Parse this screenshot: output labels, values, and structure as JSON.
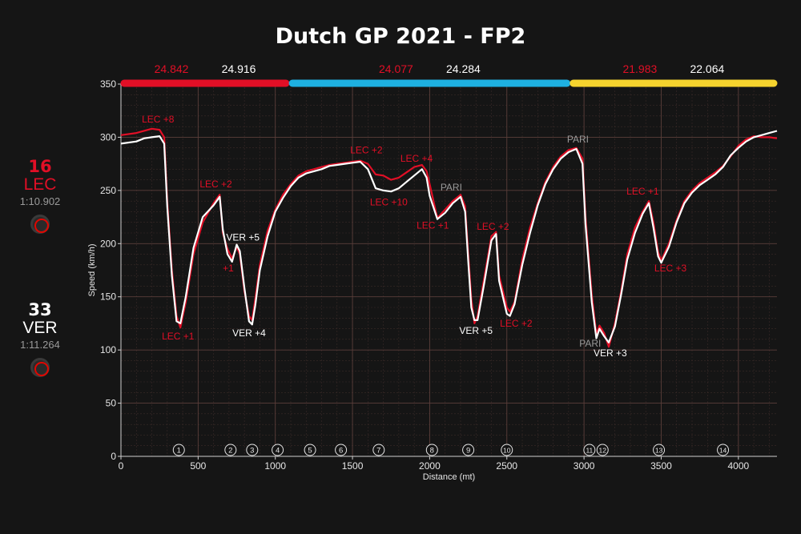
{
  "title": "Dutch GP 2021 - FP2",
  "colors": {
    "lec": "#e10f26",
    "ver": "#ffffff",
    "sector1": "#e10f26",
    "sector2": "#1eb0e1",
    "sector3": "#f5d32e",
    "grid": "#5a3e3a",
    "background": "#151515"
  },
  "drivers": [
    {
      "number": "16",
      "code": "LEC",
      "laptime": "1:10.902",
      "color": "#e10f26",
      "tyre_icon": "soft-tyre-icon"
    },
    {
      "number": "33",
      "code": "VER",
      "laptime": "1:11.264",
      "color": "#ffffff",
      "tyre_icon": "soft-tyre-icon"
    }
  ],
  "sectors": [
    {
      "start": 0,
      "end": 1090,
      "color": "#e10f26",
      "lec_time": "24.842",
      "ver_time": "24.916"
    },
    {
      "start": 1090,
      "end": 2910,
      "color": "#1eb0e1",
      "lec_time": "24.077",
      "ver_time": "24.284"
    },
    {
      "start": 2910,
      "end": 4250,
      "color": "#f5d32e",
      "lec_time": "21.983",
      "ver_time": "22.064"
    }
  ],
  "chart_data": {
    "type": "line",
    "title": "Dutch GP 2021 - FP2",
    "xlabel": "Distance (mt)",
    "ylabel": "Speed (km/h)",
    "xlim": [
      0,
      4250
    ],
    "ylim": [
      0,
      350
    ],
    "xticks": [
      0,
      500,
      1000,
      1500,
      2000,
      2500,
      3000,
      3500,
      4000
    ],
    "yticks": [
      0,
      50,
      100,
      150,
      200,
      250,
      300,
      350
    ],
    "grid": true,
    "series": [
      {
        "name": "LEC",
        "color": "#e10f26",
        "points": [
          [
            0,
            302
          ],
          [
            100,
            304
          ],
          [
            200,
            308
          ],
          [
            250,
            307
          ],
          [
            280,
            300
          ],
          [
            300,
            240
          ],
          [
            330,
            175
          ],
          [
            360,
            132
          ],
          [
            385,
            121
          ],
          [
            420,
            145
          ],
          [
            470,
            190
          ],
          [
            530,
            220
          ],
          [
            600,
            238
          ],
          [
            640,
            246
          ],
          [
            660,
            210
          ],
          [
            690,
            195
          ],
          [
            720,
            186
          ],
          [
            750,
            197
          ],
          [
            770,
            190
          ],
          [
            800,
            155
          ],
          [
            830,
            132
          ],
          [
            850,
            128
          ],
          [
            870,
            148
          ],
          [
            900,
            180
          ],
          [
            950,
            212
          ],
          [
            1000,
            232
          ],
          [
            1050,
            246
          ],
          [
            1100,
            256
          ],
          [
            1150,
            264
          ],
          [
            1200,
            268
          ],
          [
            1250,
            270
          ],
          [
            1300,
            272
          ],
          [
            1350,
            274
          ],
          [
            1400,
            275
          ],
          [
            1450,
            276
          ],
          [
            1500,
            277
          ],
          [
            1550,
            278
          ],
          [
            1600,
            275
          ],
          [
            1650,
            265
          ],
          [
            1700,
            264
          ],
          [
            1750,
            260
          ],
          [
            1800,
            262
          ],
          [
            1850,
            267
          ],
          [
            1900,
            272
          ],
          [
            1950,
            274
          ],
          [
            1980,
            268
          ],
          [
            2000,
            256
          ],
          [
            2050,
            224
          ],
          [
            2100,
            232
          ],
          [
            2150,
            240
          ],
          [
            2200,
            246
          ],
          [
            2230,
            235
          ],
          [
            2250,
            190
          ],
          [
            2270,
            148
          ],
          [
            2290,
            125
          ],
          [
            2310,
            132
          ],
          [
            2350,
            165
          ],
          [
            2400,
            207
          ],
          [
            2430,
            211
          ],
          [
            2450,
            170
          ],
          [
            2500,
            140
          ],
          [
            2520,
            136
          ],
          [
            2550,
            145
          ],
          [
            2600,
            185
          ],
          [
            2650,
            215
          ],
          [
            2700,
            238
          ],
          [
            2750,
            258
          ],
          [
            2800,
            272
          ],
          [
            2850,
            282
          ],
          [
            2900,
            288
          ],
          [
            2950,
            290
          ],
          [
            2990,
            280
          ],
          [
            3010,
            225
          ],
          [
            3050,
            152
          ],
          [
            3080,
            115
          ],
          [
            3100,
            123
          ],
          [
            3130,
            116
          ],
          [
            3160,
            103
          ],
          [
            3200,
            125
          ],
          [
            3240,
            155
          ],
          [
            3280,
            190
          ],
          [
            3330,
            215
          ],
          [
            3380,
            230
          ],
          [
            3420,
            240
          ],
          [
            3450,
            220
          ],
          [
            3480,
            192
          ],
          [
            3500,
            184
          ],
          [
            3550,
            200
          ],
          [
            3600,
            222
          ],
          [
            3650,
            240
          ],
          [
            3700,
            250
          ],
          [
            3750,
            257
          ],
          [
            3800,
            262
          ],
          [
            3850,
            267
          ],
          [
            3900,
            273
          ],
          [
            3950,
            282
          ],
          [
            4000,
            292
          ],
          [
            4050,
            298
          ],
          [
            4100,
            301
          ],
          [
            4150,
            300
          ],
          [
            4200,
            300
          ],
          [
            4250,
            299
          ]
        ]
      },
      {
        "name": "VER",
        "color": "#ffffff",
        "points": [
          [
            0,
            294
          ],
          [
            100,
            296
          ],
          [
            150,
            299
          ],
          [
            200,
            300
          ],
          [
            250,
            301
          ],
          [
            280,
            294
          ],
          [
            300,
            235
          ],
          [
            330,
            170
          ],
          [
            360,
            127
          ],
          [
            385,
            125
          ],
          [
            420,
            150
          ],
          [
            470,
            196
          ],
          [
            530,
            225
          ],
          [
            600,
            236
          ],
          [
            640,
            244
          ],
          [
            660,
            213
          ],
          [
            690,
            190
          ],
          [
            720,
            183
          ],
          [
            750,
            199
          ],
          [
            770,
            193
          ],
          [
            800,
            158
          ],
          [
            830,
            127
          ],
          [
            850,
            124
          ],
          [
            870,
            142
          ],
          [
            900,
            175
          ],
          [
            950,
            207
          ],
          [
            1000,
            230
          ],
          [
            1050,
            243
          ],
          [
            1100,
            254
          ],
          [
            1150,
            262
          ],
          [
            1200,
            266
          ],
          [
            1250,
            268
          ],
          [
            1300,
            270
          ],
          [
            1350,
            273
          ],
          [
            1400,
            274
          ],
          [
            1450,
            275
          ],
          [
            1500,
            276
          ],
          [
            1550,
            277
          ],
          [
            1600,
            270
          ],
          [
            1650,
            252
          ],
          [
            1700,
            250
          ],
          [
            1750,
            249
          ],
          [
            1800,
            252
          ],
          [
            1850,
            258
          ],
          [
            1900,
            264
          ],
          [
            1950,
            270
          ],
          [
            1980,
            262
          ],
          [
            2000,
            245
          ],
          [
            2050,
            223
          ],
          [
            2100,
            229
          ],
          [
            2150,
            238
          ],
          [
            2200,
            244
          ],
          [
            2230,
            230
          ],
          [
            2250,
            183
          ],
          [
            2270,
            140
          ],
          [
            2290,
            128
          ],
          [
            2310,
            128
          ],
          [
            2350,
            160
          ],
          [
            2400,
            203
          ],
          [
            2430,
            209
          ],
          [
            2450,
            165
          ],
          [
            2500,
            134
          ],
          [
            2520,
            132
          ],
          [
            2550,
            143
          ],
          [
            2600,
            180
          ],
          [
            2650,
            210
          ],
          [
            2700,
            236
          ],
          [
            2750,
            256
          ],
          [
            2800,
            270
          ],
          [
            2850,
            280
          ],
          [
            2900,
            286
          ],
          [
            2950,
            289
          ],
          [
            2990,
            275
          ],
          [
            3010,
            218
          ],
          [
            3050,
            145
          ],
          [
            3080,
            111
          ],
          [
            3100,
            120
          ],
          [
            3130,
            113
          ],
          [
            3160,
            107
          ],
          [
            3200,
            122
          ],
          [
            3240,
            152
          ],
          [
            3280,
            185
          ],
          [
            3330,
            210
          ],
          [
            3380,
            228
          ],
          [
            3420,
            238
          ],
          [
            3450,
            215
          ],
          [
            3480,
            188
          ],
          [
            3500,
            182
          ],
          [
            3550,
            197
          ],
          [
            3600,
            220
          ],
          [
            3650,
            238
          ],
          [
            3700,
            248
          ],
          [
            3750,
            255
          ],
          [
            3800,
            260
          ],
          [
            3850,
            265
          ],
          [
            3900,
            272
          ],
          [
            3950,
            283
          ],
          [
            4000,
            290
          ],
          [
            4050,
            296
          ],
          [
            4100,
            300
          ],
          [
            4150,
            302
          ],
          [
            4200,
            304
          ],
          [
            4250,
            306
          ]
        ]
      }
    ],
    "corners": [
      {
        "label": "1",
        "x": 375
      },
      {
        "label": "2",
        "x": 710
      },
      {
        "label": "3",
        "x": 850
      },
      {
        "label": "4",
        "x": 1015
      },
      {
        "label": "5",
        "x": 1225
      },
      {
        "label": "6",
        "x": 1425
      },
      {
        "label": "7",
        "x": 1670
      },
      {
        "label": "8",
        "x": 2015
      },
      {
        "label": "9",
        "x": 2250
      },
      {
        "label": "10",
        "x": 2500
      },
      {
        "label": "11",
        "x": 3035
      },
      {
        "label": "12",
        "x": 3120
      },
      {
        "label": "13",
        "x": 3485
      },
      {
        "label": "14",
        "x": 3900
      }
    ],
    "annotations": [
      {
        "text": "LEC +8",
        "x": 240,
        "y": 314,
        "color": "#e10f26"
      },
      {
        "text": "LEC +2",
        "x": 615,
        "y": 253,
        "color": "#e10f26"
      },
      {
        "text": "VER +5",
        "x": 790,
        "y": 203,
        "color": "#ffffff"
      },
      {
        "text": "+1",
        "x": 695,
        "y": 174,
        "color": "#e10f26"
      },
      {
        "text": "LEC +1",
        "x": 370,
        "y": 110,
        "color": "#e10f26"
      },
      {
        "text": "VER +4",
        "x": 830,
        "y": 113,
        "color": "#ffffff"
      },
      {
        "text": "LEC +2",
        "x": 1590,
        "y": 285,
        "color": "#e10f26"
      },
      {
        "text": "LEC +4",
        "x": 1915,
        "y": 277,
        "color": "#e10f26"
      },
      {
        "text": "LEC +10",
        "x": 1735,
        "y": 236,
        "color": "#e10f26"
      },
      {
        "text": "PARI",
        "x": 2140,
        "y": 250,
        "color": "#9a9a9a"
      },
      {
        "text": "LEC +1",
        "x": 2020,
        "y": 214,
        "color": "#e10f26"
      },
      {
        "text": "LEC +2",
        "x": 2410,
        "y": 213,
        "color": "#e10f26"
      },
      {
        "text": "VER +5",
        "x": 2300,
        "y": 115,
        "color": "#ffffff"
      },
      {
        "text": "LEC +2",
        "x": 2560,
        "y": 122,
        "color": "#e10f26"
      },
      {
        "text": "PARI",
        "x": 2960,
        "y": 295,
        "color": "#9a9a9a"
      },
      {
        "text": "PARI",
        "x": 3040,
        "y": 103,
        "color": "#9a9a9a"
      },
      {
        "text": "VER +3",
        "x": 3170,
        "y": 94,
        "color": "#ffffff"
      },
      {
        "text": "LEC +1",
        "x": 3380,
        "y": 246,
        "color": "#e10f26"
      },
      {
        "text": "LEC +3",
        "x": 3560,
        "y": 174,
        "color": "#e10f26"
      }
    ]
  }
}
